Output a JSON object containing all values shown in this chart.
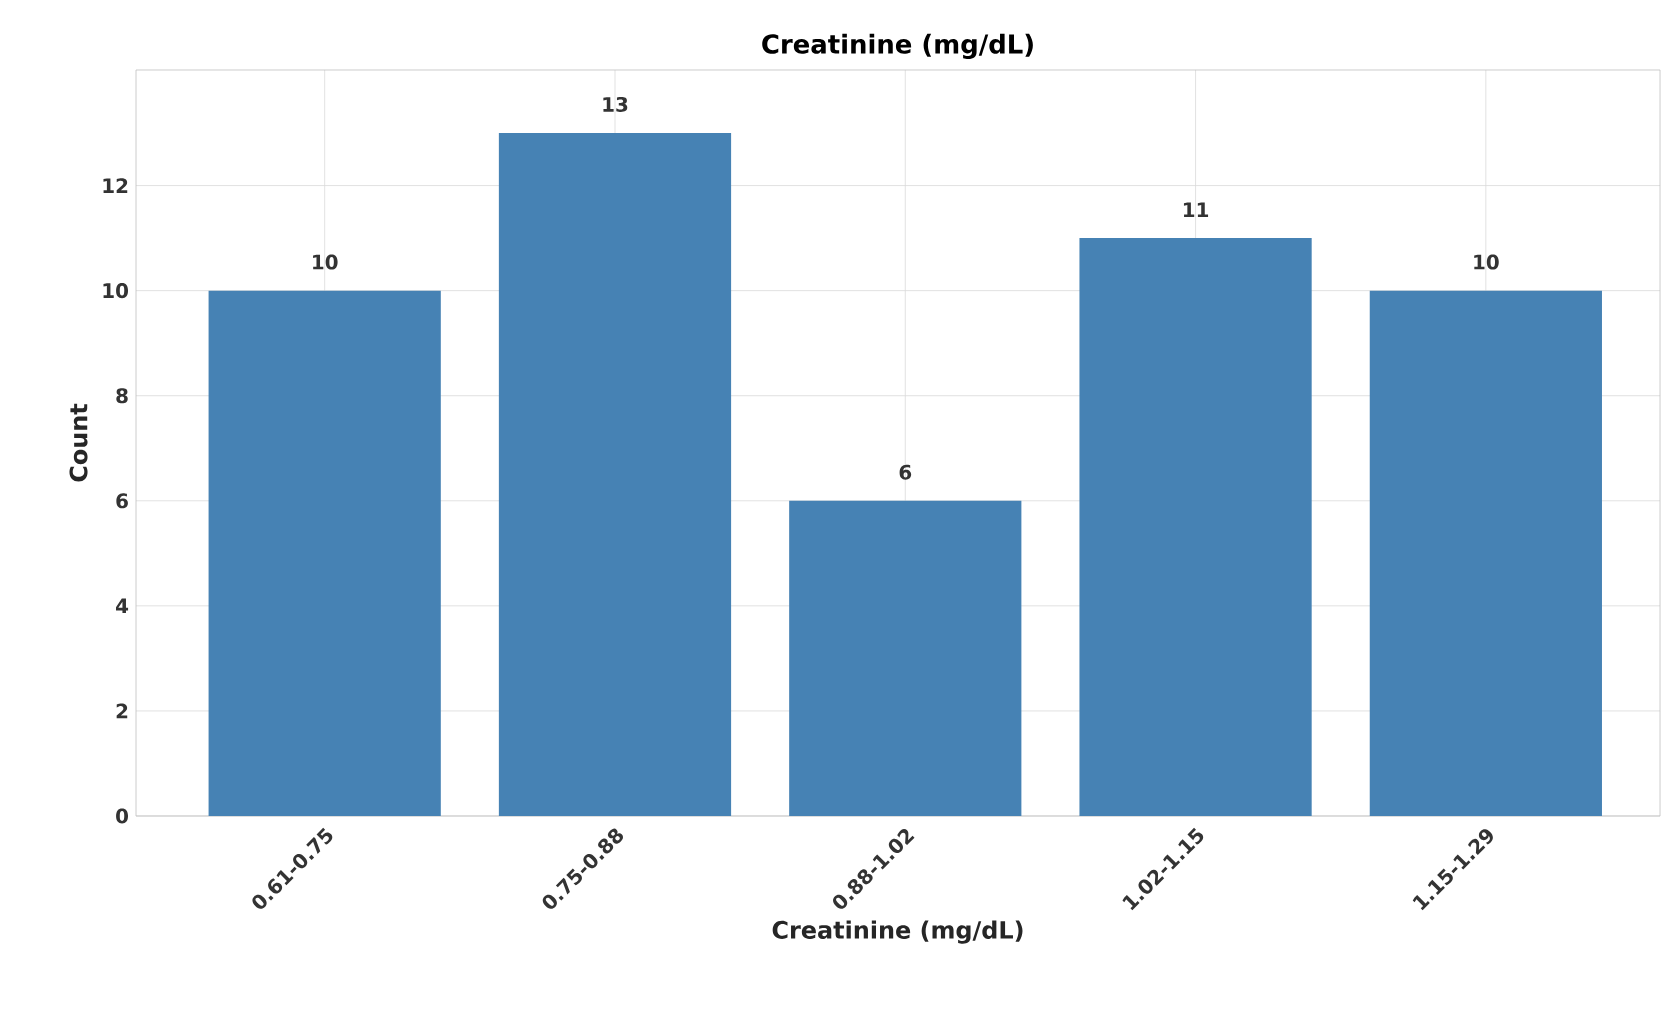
{
  "chart_data": {
    "type": "bar",
    "title": "Creatinine (mg/dL)",
    "xlabel": "Creatinine (mg/dL)",
    "ylabel": "Count",
    "categories": [
      "0.61-0.75",
      "0.75-0.88",
      "0.88-1.02",
      "1.02-1.15",
      "1.15-1.29"
    ],
    "values": [
      10,
      13,
      6,
      11,
      10
    ],
    "color": "#4682b4",
    "ylim": [
      0,
      14.2
    ],
    "yticks": [
      0,
      2,
      4,
      6,
      8,
      10,
      12
    ],
    "grid": true,
    "data_labels": true
  }
}
